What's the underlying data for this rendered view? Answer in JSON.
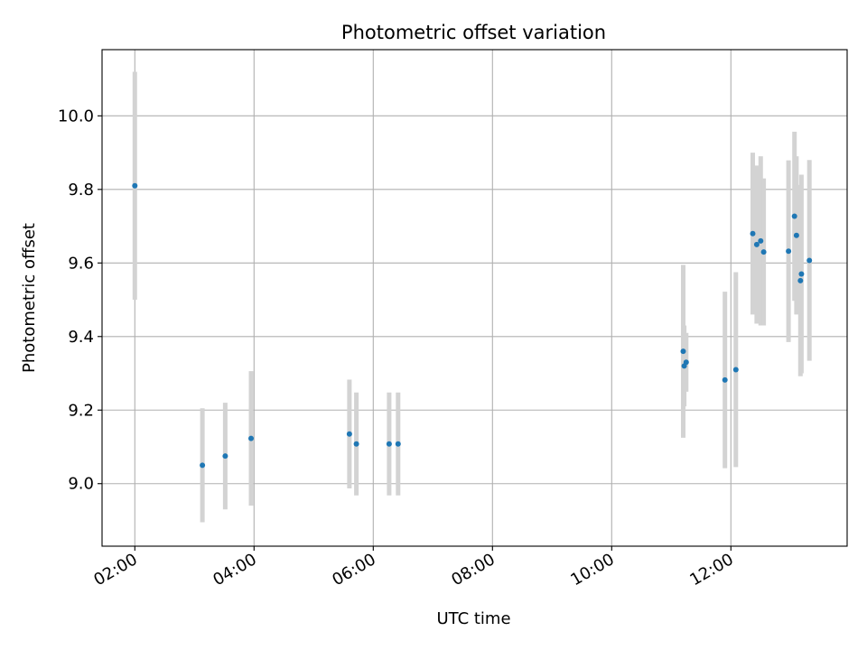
{
  "chart_data": {
    "type": "scatter",
    "title": "Photometric offset variation",
    "xlabel": "UTC time",
    "ylabel": "Photometric offset",
    "x_format": "HH:MM",
    "xlim": [
      "01:27",
      "13:57"
    ],
    "ylim": [
      8.83,
      10.18
    ],
    "x_ticks": [
      "02:00",
      "04:00",
      "06:00",
      "08:00",
      "10:00",
      "12:00"
    ],
    "y_ticks": [
      "9.0",
      "9.2",
      "9.4",
      "9.6",
      "9.8",
      "10.0"
    ],
    "grid": true,
    "point_color": "#1f77b4",
    "errorbar_color": "#d3d3d3",
    "points": [
      {
        "x": "02:00",
        "y": 9.81,
        "err": 0.31
      },
      {
        "x": "03:08",
        "y": 9.05,
        "err": 0.155
      },
      {
        "x": "03:31",
        "y": 9.075,
        "err": 0.145
      },
      {
        "x": "03:57",
        "y": 9.123,
        "err": 0.183
      },
      {
        "x": "05:36",
        "y": 9.135,
        "err": 0.148
      },
      {
        "x": "05:43",
        "y": 9.108,
        "err": 0.14
      },
      {
        "x": "06:16",
        "y": 9.108,
        "err": 0.14
      },
      {
        "x": "06:25",
        "y": 9.108,
        "err": 0.14
      },
      {
        "x": "11:12",
        "y": 9.36,
        "err": 0.235
      },
      {
        "x": "11:13",
        "y": 9.32,
        "err": 0.11
      },
      {
        "x": "11:15",
        "y": 9.33,
        "err": 0.08
      },
      {
        "x": "11:54",
        "y": 9.282,
        "err": 0.24
      },
      {
        "x": "12:05",
        "y": 9.31,
        "err": 0.265
      },
      {
        "x": "12:22",
        "y": 9.68,
        "err": 0.22
      },
      {
        "x": "12:26",
        "y": 9.65,
        "err": 0.215
      },
      {
        "x": "12:30",
        "y": 9.66,
        "err": 0.23
      },
      {
        "x": "12:33",
        "y": 9.63,
        "err": 0.2
      },
      {
        "x": "12:58",
        "y": 9.632,
        "err": 0.247
      },
      {
        "x": "13:04",
        "y": 9.727,
        "err": 0.23
      },
      {
        "x": "13:06",
        "y": 9.675,
        "err": 0.215
      },
      {
        "x": "13:10",
        "y": 9.552,
        "err": 0.26
      },
      {
        "x": "13:11",
        "y": 9.57,
        "err": 0.27
      },
      {
        "x": "13:19",
        "y": 9.607,
        "err": 0.273
      }
    ]
  }
}
